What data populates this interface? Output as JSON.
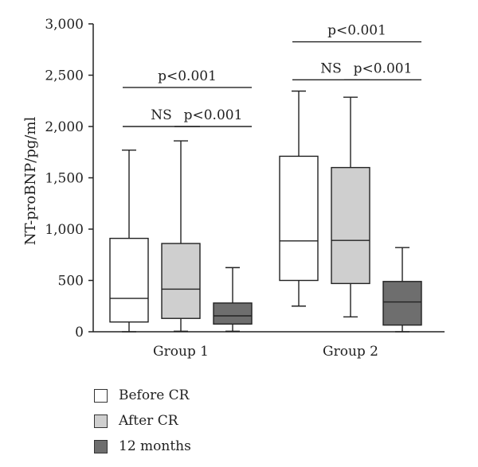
{
  "chart_data": {
    "type": "box",
    "ylabel": "NT-proBNP/pg/ml",
    "ylim": [
      0,
      3000
    ],
    "yticks": [
      0,
      500,
      1000,
      1500,
      2000,
      2500,
      3000
    ],
    "ytick_labels": [
      "0",
      "500",
      "1,000",
      "1,500",
      "2,000",
      "2,500",
      "3,000"
    ],
    "categories": [
      "Group 1",
      "Group 2"
    ],
    "series": [
      {
        "name": "Before CR",
        "color": "#ffffff",
        "boxes": [
          {
            "min": 0,
            "q1": 95,
            "median": 325,
            "q3": 910,
            "max": 1770
          },
          {
            "min": 250,
            "q1": 500,
            "median": 885,
            "q3": 1710,
            "max": 2345
          }
        ]
      },
      {
        "name": "After CR",
        "color": "#cfcfcf",
        "boxes": [
          {
            "min": 5,
            "q1": 130,
            "median": 415,
            "q3": 860,
            "max": 1860
          },
          {
            "min": 145,
            "q1": 470,
            "median": 890,
            "q3": 1600,
            "max": 2285
          }
        ]
      },
      {
        "name": "12 months",
        "color": "#6e6e6e",
        "boxes": [
          {
            "min": 5,
            "q1": 75,
            "median": 155,
            "q3": 280,
            "max": 625
          },
          {
            "min": 0,
            "q1": 65,
            "median": 290,
            "q3": 490,
            "max": 820
          }
        ]
      }
    ],
    "annotations": [
      {
        "group": 0,
        "from": 0,
        "to": 2,
        "label": "p<0.001",
        "y": 2380
      },
      {
        "group": 0,
        "from": 0,
        "to": 1,
        "label": "NS",
        "y": 2000
      },
      {
        "group": 0,
        "from": 1,
        "to": 2,
        "label": "p<0.001",
        "y": 2000
      },
      {
        "group": 1,
        "from": 0,
        "to": 2,
        "label": "p<0.001",
        "y": 2825
      },
      {
        "group": 1,
        "from": 0,
        "to": 1,
        "label": "NS",
        "y": 2455
      },
      {
        "group": 1,
        "from": 1,
        "to": 2,
        "label": "p<0.001",
        "y": 2455
      }
    ]
  },
  "legend": {
    "items": [
      {
        "label": "Before CR",
        "color": "#ffffff"
      },
      {
        "label": "After CR",
        "color": "#cfcfcf"
      },
      {
        "label": "12 months",
        "color": "#6e6e6e"
      }
    ]
  }
}
